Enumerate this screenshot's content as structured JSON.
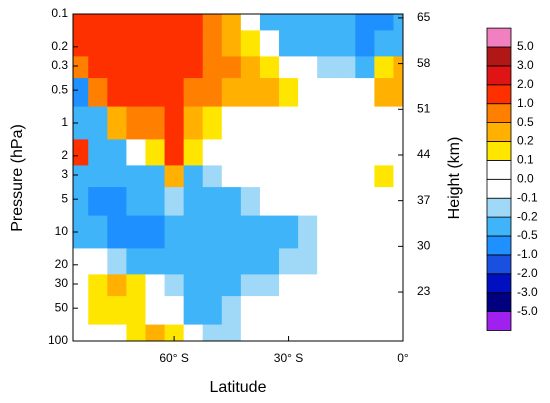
{
  "chart_data": {
    "type": "contour",
    "xlabel": "Latitude",
    "ylabel": "Pressure (hPa)",
    "y2label": "Height (km)",
    "x": [
      -85,
      -80,
      -75,
      -70,
      -65,
      -60,
      -55,
      -50,
      -45,
      -40,
      -35,
      -30,
      -25,
      -20,
      -15,
      -10,
      -5,
      0
    ],
    "y": [
      0.1,
      0.2,
      0.3,
      0.5,
      1,
      2,
      3,
      5,
      10,
      20,
      30,
      50,
      100
    ],
    "z": [
      [
        1.5,
        1.5,
        1.5,
        1.5,
        1.5,
        1.5,
        1.5,
        0.7,
        0.3,
        0.05,
        -0.3,
        -0.3,
        -0.3,
        -0.3,
        -0.3,
        -0.6,
        -0.6,
        -0.3
      ],
      [
        1.5,
        1.5,
        1.5,
        1.5,
        1.5,
        1.5,
        1.5,
        0.7,
        0.4,
        0.15,
        -0.05,
        -0.3,
        -0.3,
        -0.3,
        -0.3,
        -0.6,
        -0.3,
        -0.3
      ],
      [
        0.7,
        1.5,
        1.5,
        1.5,
        1.5,
        1.5,
        1.2,
        0.7,
        0.7,
        0.4,
        0.15,
        0.05,
        -0.05,
        -0.15,
        -0.15,
        -0.3,
        0.15,
        0.3
      ],
      [
        -0.6,
        0.7,
        1.5,
        1.5,
        1.5,
        1.5,
        0.7,
        0.7,
        0.4,
        0.4,
        0.3,
        0.15,
        0.05,
        0.05,
        0.05,
        -0.05,
        0.3,
        0.3
      ],
      [
        -0.3,
        -0.3,
        0.4,
        0.7,
        0.7,
        1.5,
        0.4,
        0.15,
        0.05,
        0.05,
        0.05,
        0.05,
        0.05,
        0.05,
        0.05,
        0.05,
        0.05,
        0.05
      ],
      [
        1.5,
        -0.3,
        -0.3,
        0.05,
        0.15,
        1.2,
        0.15,
        0.05,
        0.05,
        -0.05,
        0.05,
        0.05,
        0.05,
        0.05,
        0.05,
        0.05,
        0.05,
        0.05
      ],
      [
        -0.3,
        -0.3,
        -0.3,
        -0.3,
        -0.3,
        0.4,
        -0.3,
        -0.15,
        -0.05,
        -0.05,
        0.05,
        0.05,
        0.05,
        0.05,
        0.05,
        0.05,
        0.15,
        0.05
      ],
      [
        -0.3,
        -0.6,
        -0.6,
        -0.3,
        -0.3,
        -0.15,
        -0.3,
        -0.3,
        -0.3,
        -0.15,
        -0.05,
        -0.05,
        0.05,
        0.05,
        0.05,
        0.05,
        0.05,
        0.05
      ],
      [
        -0.3,
        -0.3,
        -0.6,
        -0.6,
        -0.6,
        -0.3,
        -0.3,
        -0.3,
        -0.3,
        -0.3,
        -0.3,
        -0.3,
        -0.15,
        -0.05,
        0.05,
        0.05,
        0.05,
        0.05
      ],
      [
        0.05,
        0.05,
        -0.15,
        -0.3,
        -0.3,
        -0.3,
        -0.3,
        -0.3,
        -0.3,
        -0.3,
        -0.3,
        -0.15,
        -0.15,
        -0.05,
        0.05,
        0.05,
        0.05,
        0.05
      ],
      [
        0.05,
        0.15,
        0.4,
        0.15,
        -0.05,
        -0.15,
        -0.3,
        -0.3,
        -0.3,
        -0.15,
        -0.15,
        -0.05,
        0.05,
        0.05,
        0.05,
        0.05,
        0.05,
        0.05
      ],
      [
        0.05,
        0.15,
        0.15,
        0.15,
        0.05,
        -0.05,
        -0.3,
        -0.3,
        -0.15,
        -0.05,
        0.05,
        0.05,
        0.05,
        0.05,
        0.05,
        0.05,
        0.05,
        0.05
      ],
      [
        0.05,
        0.05,
        0.05,
        0.15,
        0.4,
        0.15,
        -0.05,
        -0.15,
        -0.15,
        -0.05,
        0.05,
        0.05,
        0.05,
        0.05,
        0.05,
        0.05,
        0.05,
        0.05
      ]
    ],
    "xlim": [
      -86.5,
      0
    ],
    "xticks": [
      {
        "value": -60,
        "label": "60° S"
      },
      {
        "value": -30,
        "label": "30° S"
      },
      {
        "value": 0,
        "label": "0°"
      }
    ],
    "ylim": [
      100,
      0.1
    ],
    "ylog": true,
    "yticks": [
      0.1,
      0.2,
      0.3,
      0.5,
      1,
      2,
      3,
      5,
      10,
      20,
      30,
      50,
      100
    ],
    "y2lim": [
      15.5,
      65.6
    ],
    "y2ticks": [
      65,
      58,
      51,
      44,
      37,
      30,
      23
    ],
    "levels": [
      {
        "value": -5,
        "label": "-5.0"
      },
      {
        "value": -3,
        "label": "-3.0"
      },
      {
        "value": -2,
        "label": "-2.0"
      },
      {
        "value": -1,
        "label": "-1.0"
      },
      {
        "value": -0.5,
        "label": "-0.5"
      },
      {
        "value": -0.2,
        "label": "-0.2"
      },
      {
        "value": -0.1,
        "label": "-0.1"
      },
      {
        "value": 0,
        "label": "0.0"
      },
      {
        "value": 0.1,
        "label": "0.1"
      },
      {
        "value": 0.2,
        "label": "0.2"
      },
      {
        "value": 0.5,
        "label": "0.5"
      },
      {
        "value": 1,
        "label": "1.0"
      },
      {
        "value": 2,
        "label": "2.0"
      },
      {
        "value": 3,
        "label": "3.0"
      },
      {
        "value": 5,
        "label": "5.0"
      }
    ],
    "colors": [
      "#a020f0",
      "#000080",
      "#0010c0",
      "#1a50e0",
      "#1e90ff",
      "#40b4f8",
      "#a0d8f8",
      "#ffffff",
      "#ffffff",
      "#ffe600",
      "#ffb000",
      "#ff8000",
      "#ff3000",
      "#e01414",
      "#b01818",
      "#f080c0"
    ]
  }
}
